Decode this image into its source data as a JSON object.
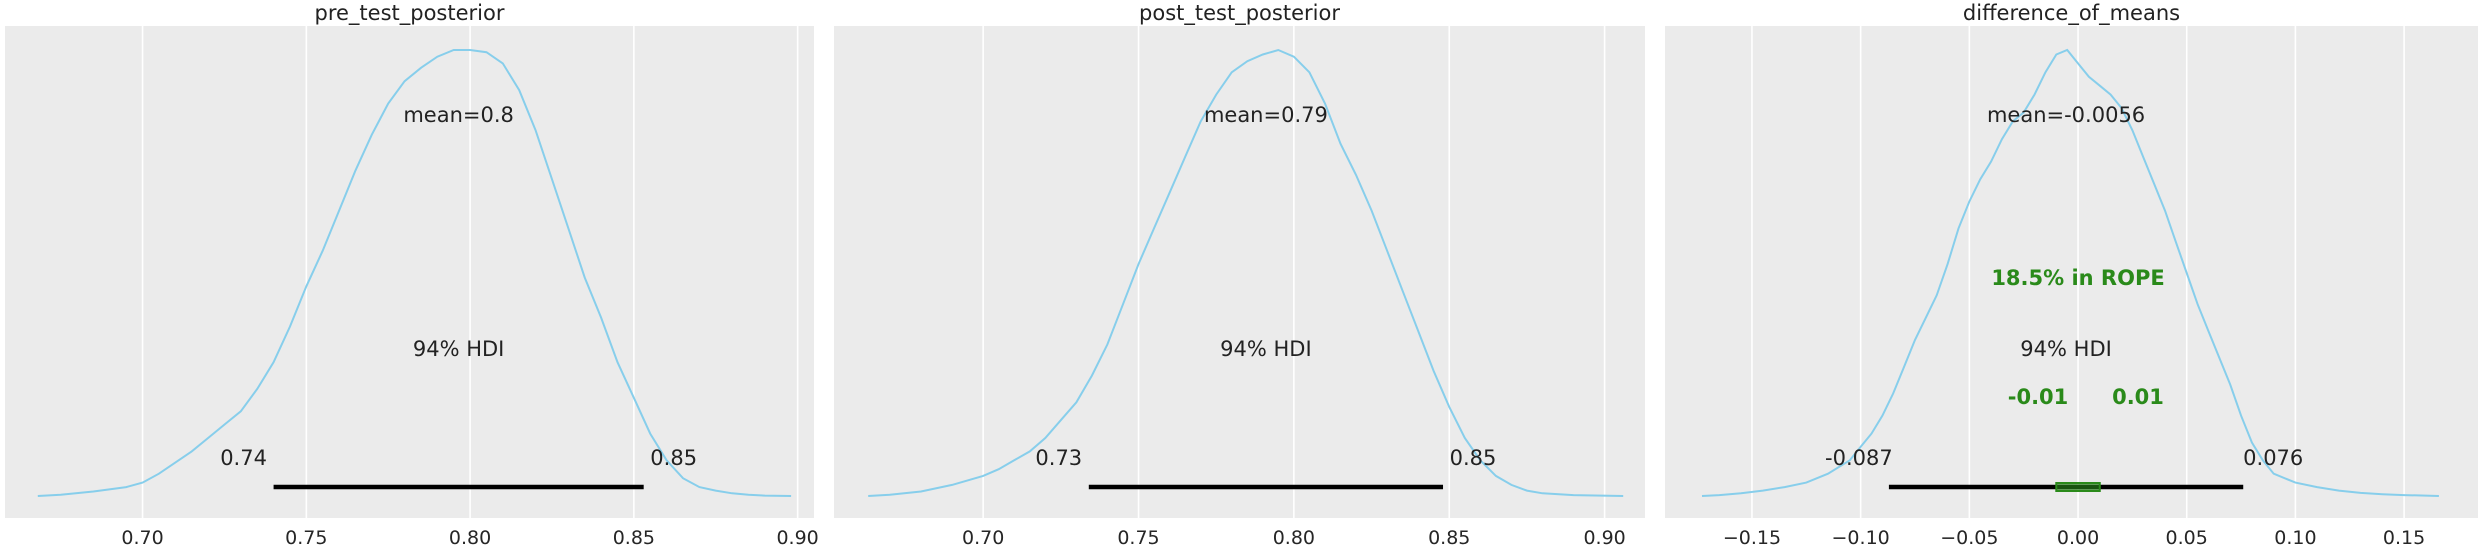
{
  "colors": {
    "kde": "#87ceeb",
    "rope": "#2a8a1a",
    "panel": "#ebebeb",
    "grid": "#ffffff",
    "hdi_bar": "#000000"
  },
  "chart_data": [
    {
      "type": "line",
      "title": "pre_test_posterior",
      "xlim": [
        0.658,
        0.905
      ],
      "x_ticks": [
        0.7,
        0.75,
        0.8,
        0.85,
        0.9
      ],
      "x_tick_labels": [
        "0.70",
        "0.75",
        "0.80",
        "0.85",
        "0.90"
      ],
      "grid": true,
      "kde": {
        "x": [
          0.668,
          0.675,
          0.685,
          0.695,
          0.7,
          0.705,
          0.71,
          0.715,
          0.72,
          0.725,
          0.73,
          0.735,
          0.74,
          0.745,
          0.75,
          0.755,
          0.76,
          0.765,
          0.77,
          0.775,
          0.78,
          0.785,
          0.79,
          0.795,
          0.8,
          0.805,
          0.81,
          0.815,
          0.82,
          0.825,
          0.83,
          0.835,
          0.84,
          0.845,
          0.85,
          0.855,
          0.86,
          0.865,
          0.87,
          0.875,
          0.88,
          0.885,
          0.89,
          0.898
        ],
        "y": [
          0.0,
          0.003,
          0.01,
          0.02,
          0.03,
          0.05,
          0.075,
          0.1,
          0.13,
          0.16,
          0.19,
          0.24,
          0.3,
          0.38,
          0.47,
          0.55,
          0.64,
          0.73,
          0.81,
          0.88,
          0.93,
          0.96,
          0.985,
          1.0,
          1.0,
          0.995,
          0.97,
          0.91,
          0.82,
          0.71,
          0.6,
          0.49,
          0.4,
          0.3,
          0.22,
          0.14,
          0.08,
          0.04,
          0.02,
          0.012,
          0.006,
          0.003,
          0.001,
          0.0
        ]
      },
      "mean_label": "mean=0.8",
      "hdi_prob_label": "94% HDI",
      "hdi": [
        0.74,
        0.853
      ],
      "hdi_labels": [
        "0.74",
        "0.85"
      ]
    },
    {
      "type": "line",
      "title": "post_test_posterior",
      "xlim": [
        0.652,
        0.913
      ],
      "x_ticks": [
        0.7,
        0.75,
        0.8,
        0.85,
        0.9
      ],
      "x_tick_labels": [
        "0.70",
        "0.75",
        "0.80",
        "0.85",
        "0.90"
      ],
      "grid": true,
      "kde": {
        "x": [
          0.663,
          0.67,
          0.68,
          0.69,
          0.7,
          0.705,
          0.71,
          0.715,
          0.72,
          0.725,
          0.73,
          0.735,
          0.74,
          0.745,
          0.75,
          0.755,
          0.76,
          0.765,
          0.77,
          0.775,
          0.78,
          0.785,
          0.79,
          0.795,
          0.8,
          0.805,
          0.81,
          0.815,
          0.82,
          0.825,
          0.83,
          0.835,
          0.84,
          0.845,
          0.85,
          0.855,
          0.86,
          0.865,
          0.87,
          0.875,
          0.88,
          0.89,
          0.906
        ],
        "y": [
          0.0,
          0.003,
          0.01,
          0.025,
          0.045,
          0.06,
          0.08,
          0.1,
          0.13,
          0.17,
          0.21,
          0.27,
          0.34,
          0.43,
          0.52,
          0.6,
          0.68,
          0.76,
          0.84,
          0.9,
          0.95,
          0.975,
          0.99,
          1.0,
          0.985,
          0.95,
          0.88,
          0.79,
          0.72,
          0.64,
          0.55,
          0.46,
          0.37,
          0.28,
          0.2,
          0.13,
          0.08,
          0.045,
          0.025,
          0.012,
          0.006,
          0.002,
          0.0
        ]
      },
      "mean_label": "mean=0.79",
      "hdi_prob_label": "94% HDI",
      "hdi": [
        0.734,
        0.848
      ],
      "hdi_labels": [
        "0.73",
        "0.85"
      ]
    },
    {
      "type": "line",
      "title": "difference_of_means",
      "xlim": [
        -0.19,
        0.184
      ],
      "x_ticks": [
        -0.15,
        -0.1,
        -0.05,
        0.0,
        0.05,
        0.1,
        0.15
      ],
      "x_tick_labels": [
        "−0.15",
        "−0.10",
        "−0.05",
        "0.00",
        "0.05",
        "0.10",
        "0.15"
      ],
      "grid": true,
      "kde": {
        "x": [
          -0.173,
          -0.165,
          -0.155,
          -0.145,
          -0.135,
          -0.125,
          -0.115,
          -0.105,
          -0.1,
          -0.095,
          -0.09,
          -0.085,
          -0.08,
          -0.075,
          -0.07,
          -0.065,
          -0.06,
          -0.055,
          -0.05,
          -0.045,
          -0.04,
          -0.035,
          -0.03,
          -0.025,
          -0.02,
          -0.015,
          -0.01,
          -0.005,
          0.0,
          0.005,
          0.01,
          0.015,
          0.02,
          0.025,
          0.03,
          0.035,
          0.04,
          0.045,
          0.05,
          0.055,
          0.06,
          0.065,
          0.07,
          0.075,
          0.08,
          0.085,
          0.09,
          0.1,
          0.11,
          0.12,
          0.13,
          0.14,
          0.15,
          0.16,
          0.166
        ],
        "y": [
          0.0,
          0.002,
          0.006,
          0.012,
          0.02,
          0.03,
          0.05,
          0.08,
          0.11,
          0.14,
          0.18,
          0.23,
          0.29,
          0.35,
          0.4,
          0.45,
          0.52,
          0.6,
          0.66,
          0.71,
          0.75,
          0.8,
          0.84,
          0.86,
          0.9,
          0.95,
          0.99,
          1.0,
          0.97,
          0.94,
          0.92,
          0.9,
          0.87,
          0.82,
          0.76,
          0.7,
          0.64,
          0.57,
          0.5,
          0.43,
          0.37,
          0.31,
          0.25,
          0.18,
          0.12,
          0.08,
          0.05,
          0.03,
          0.02,
          0.012,
          0.007,
          0.004,
          0.002,
          0.001,
          0.0
        ]
      },
      "mean_label": "mean=-0.0056",
      "hdi_prob_label": "94% HDI",
      "hdi": [
        -0.087,
        0.076
      ],
      "hdi_labels": [
        "-0.087",
        "0.076"
      ],
      "rope": [
        -0.01,
        0.01
      ],
      "rope_label": "18.5% in ROPE",
      "rope_bound_labels": [
        "-0.01",
        "0.01"
      ]
    }
  ]
}
